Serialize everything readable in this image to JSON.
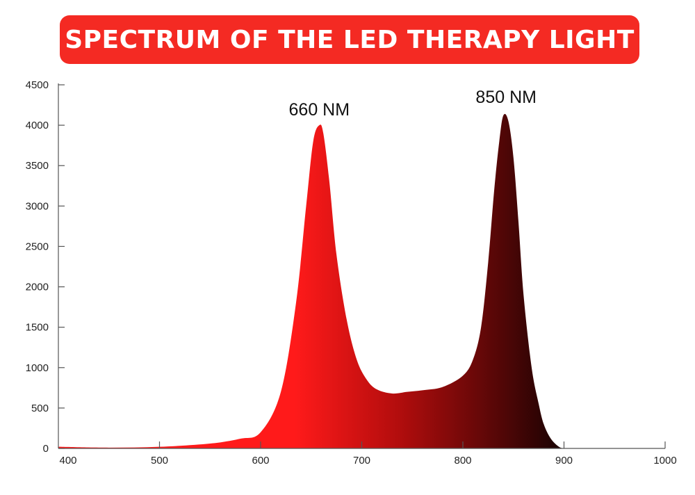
{
  "chart_data": {
    "type": "area",
    "title": "SPECTRUM OF THE LED THERAPY LIGHT",
    "xlabel": "",
    "ylabel": "",
    "xlim": [
      400,
      1000
    ],
    "ylim": [
      0,
      4500
    ],
    "x_ticks": [
      400,
      500,
      600,
      700,
      800,
      900,
      1000
    ],
    "y_ticks": [
      0,
      500,
      1000,
      1500,
      2000,
      2500,
      3000,
      3500,
      4000,
      4500
    ],
    "grid": false,
    "legend": "none",
    "series": [
      {
        "x": [
          400,
          450,
          500,
          550,
          580,
          600,
          620,
          635,
          645,
          652,
          658,
          662,
          668,
          675,
          685,
          695,
          705,
          715,
          730,
          745,
          760,
          780,
          800,
          810,
          818,
          825,
          831,
          836,
          840,
          845,
          850,
          855,
          860,
          868,
          875,
          880,
          887,
          895,
          900
        ],
        "y": [
          20,
          10,
          20,
          60,
          120,
          200,
          700,
          1800,
          3000,
          3800,
          4000,
          3900,
          3300,
          2400,
          1600,
          1100,
          850,
          730,
          680,
          700,
          720,
          760,
          900,
          1100,
          1500,
          2300,
          3200,
          3800,
          4120,
          4050,
          3600,
          2800,
          1900,
          1000,
          550,
          300,
          120,
          20,
          0
        ]
      }
    ],
    "annotations": [
      {
        "text": "660 NM",
        "x": 660
      },
      {
        "text": "850 NM",
        "x": 840
      }
    ],
    "colors": {
      "banner": "#f42a23",
      "fill_start": "#ff1a1a",
      "fill_mid": "#b30d0d",
      "fill_end": "#120202",
      "axis": "#555555"
    }
  }
}
